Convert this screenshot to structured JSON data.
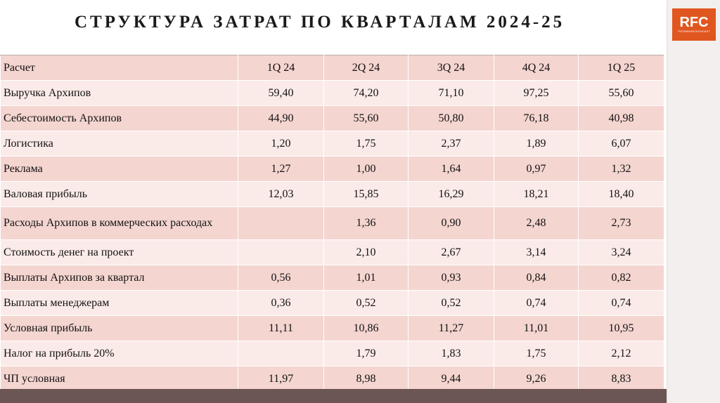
{
  "title": "СТРУКТУРА ЗАТРАТ ПО КВАРТАЛАМ 2024-25",
  "logo": {
    "text": "RFC",
    "subtitle": "РУСФИНАНСКОНСАЛТ"
  },
  "table": {
    "header": [
      "Расчет",
      "1Q 24",
      "2Q 24",
      "3Q 24",
      "4Q 24",
      "1Q 25"
    ],
    "rows": [
      [
        "Выручка Архипов",
        "59,40",
        "74,20",
        "71,10",
        "97,25",
        "55,60"
      ],
      [
        "Себестоимость Архипов",
        "44,90",
        "55,60",
        "50,80",
        "76,18",
        "40,98"
      ],
      [
        "Логистика",
        "1,20",
        "1,75",
        "2,37",
        "1,89",
        "6,07"
      ],
      [
        "Реклама",
        "1,27",
        "1,00",
        "1,64",
        "0,97",
        "1,32"
      ],
      [
        "Валовая прибыль",
        "12,03",
        "15,85",
        "16,29",
        "18,21",
        "18,40"
      ],
      [
        "Расходы Архипов в коммерческих расходах",
        "",
        "1,36",
        "0,90",
        "2,48",
        "2,73"
      ],
      [
        "Стоимость денег на проект",
        "",
        "2,10",
        "2,67",
        "3,14",
        "3,24"
      ],
      [
        "Выплаты Архипов за квартал",
        "0,56",
        "1,01",
        "0,93",
        "0,84",
        "0,82"
      ],
      [
        "Выплаты менеджерам",
        "0,36",
        "0,52",
        "0,52",
        "0,74",
        "0,74"
      ],
      [
        "Условная прибыль",
        "11,11",
        "10,86",
        "11,27",
        "11,01",
        "10,95"
      ],
      [
        "Налог на прибыль 20%",
        "",
        "1,79",
        "1,83",
        "1,75",
        "2,12"
      ],
      [
        "ЧП условная",
        "11,97",
        "8,98",
        "9,44",
        "9,26",
        "8,83"
      ]
    ]
  },
  "colors": {
    "row_dark": "#f4d5d0",
    "row_light": "#fbebe8",
    "accent": "#e0561f",
    "bottom_bar": "#6b5654"
  }
}
